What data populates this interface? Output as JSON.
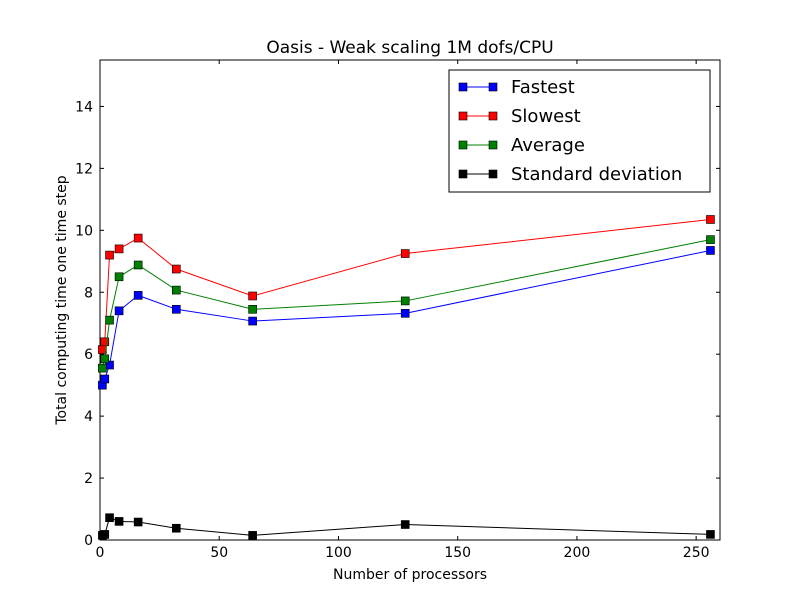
{
  "chart_data": {
    "type": "line",
    "title": "Oasis - Weak scaling 1M dofs/CPU",
    "xlabel": "Number of processors",
    "ylabel": "Total computing time one time step",
    "xlim": [
      0,
      260
    ],
    "ylim": [
      0,
      15.5
    ],
    "xticks": [
      0,
      50,
      100,
      150,
      200,
      250
    ],
    "yticks": [
      0,
      2,
      4,
      6,
      8,
      10,
      12,
      14
    ],
    "grid": false,
    "legend_position": "top-right",
    "x": [
      1,
      2,
      4,
      8,
      16,
      32,
      64,
      128,
      256
    ],
    "series": [
      {
        "name": "Fastest",
        "color": "#0000ff",
        "values": [
          5.0,
          5.2,
          5.65,
          7.4,
          7.9,
          7.45,
          7.07,
          7.32,
          9.35
        ]
      },
      {
        "name": "Slowest",
        "color": "#ff0000",
        "values": [
          6.15,
          6.4,
          9.2,
          9.4,
          9.75,
          8.75,
          7.88,
          9.25,
          10.35
        ]
      },
      {
        "name": "Average",
        "color": "#008000",
        "values": [
          5.55,
          5.85,
          7.1,
          8.5,
          8.88,
          8.07,
          7.45,
          7.72,
          9.7
        ]
      },
      {
        "name": "Standard deviation",
        "color": "#000000",
        "values": [
          0.15,
          0.18,
          0.72,
          0.6,
          0.58,
          0.38,
          0.15,
          0.5,
          0.18
        ]
      }
    ]
  }
}
